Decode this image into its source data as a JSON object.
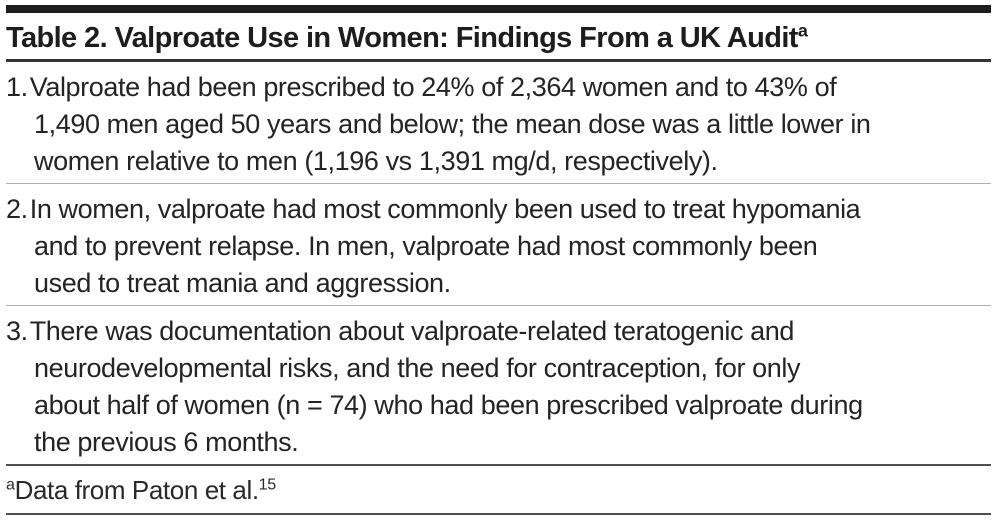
{
  "colors": {
    "top_bar": "#1d1d1d",
    "title_rule": "#343434",
    "item_divider": "#aeaeae",
    "footnote_rule": "#4f4f4f",
    "text": "#242424"
  },
  "table": {
    "title": "Table 2. Valproate Use in Women: Findings From a UK Audit",
    "title_superscript": "a",
    "findings": [
      {
        "number": "1.",
        "lines": [
          "Valproate had been prescribed to 24% of 2,364 women and to 43% of",
          "1,490 men aged 50 years and below; the mean dose was a little lower in",
          "women relative to men (1,196 vs 1,391 mg/d, respectively)."
        ]
      },
      {
        "number": "2.",
        "lines": [
          "In women, valproate had most commonly been used to treat hypomania",
          "and to prevent relapse. In men, valproate had most commonly been",
          "used to treat mania and aggression."
        ]
      },
      {
        "number": "3.",
        "lines": [
          "There was documentation about valproate-related teratogenic and",
          "neurodevelopmental risks, and the need for contraception, for only",
          "about half of women (n = 74) who had been prescribed valproate during",
          "the previous 6 months."
        ]
      }
    ],
    "footnote": {
      "marker": "a",
      "text": "Data from Paton et al.",
      "reference": "15"
    }
  }
}
